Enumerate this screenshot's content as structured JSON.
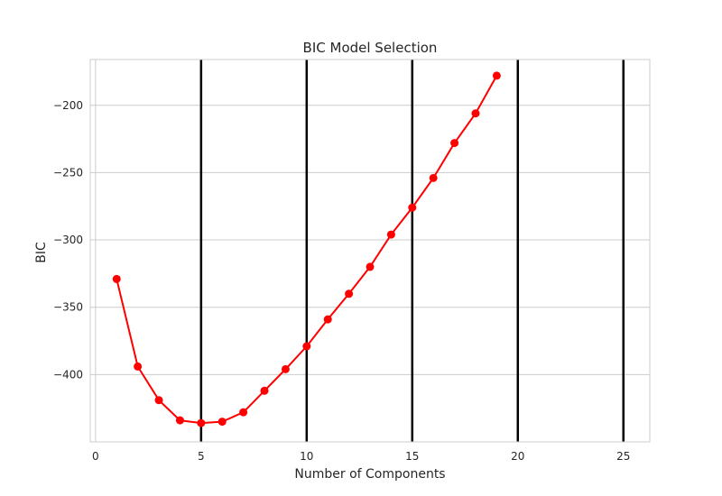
{
  "chart_data": {
    "type": "line",
    "title": "BIC Model Selection",
    "xlabel": "Number of Components",
    "ylabel": "BIC",
    "xlim": [
      -0.25,
      26.25
    ],
    "ylim": [
      -450,
      -166
    ],
    "x_ticks": [
      0,
      5,
      10,
      15,
      20,
      25
    ],
    "y_ticks": [
      -400,
      -350,
      -300,
      -250,
      -200
    ],
    "grid": "horizontal",
    "vertical_lines": [
      5,
      10,
      15,
      20,
      25
    ],
    "line_color": "#ff0000",
    "vline_color": "#000000",
    "series": [
      {
        "x": [
          1,
          2,
          3,
          4,
          5,
          6,
          7,
          8,
          9,
          10,
          11,
          12,
          13,
          14,
          15,
          16,
          17,
          18,
          19
        ],
        "values": [
          -329,
          -394,
          -419,
          -434,
          -436,
          -435,
          -428,
          -412,
          -396,
          -379,
          -359,
          -340,
          -320,
          -296,
          -276,
          -254,
          -228,
          -206,
          -178
        ]
      }
    ]
  }
}
